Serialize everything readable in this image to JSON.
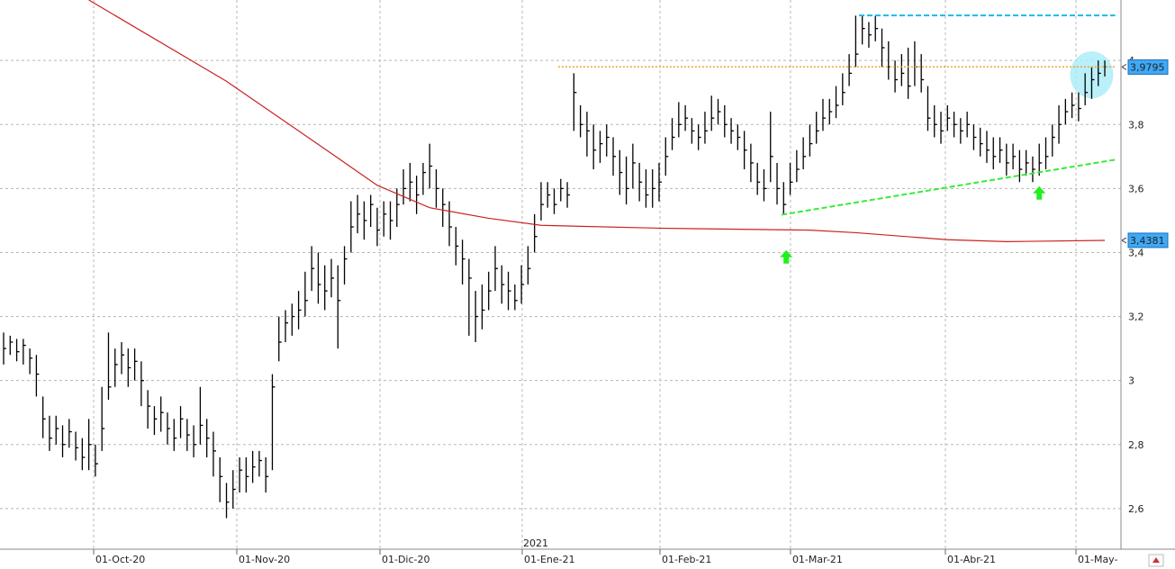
{
  "chart_data": {
    "type": "ohlc",
    "x": [
      0,
      1,
      2,
      3,
      4,
      5,
      6,
      7,
      8,
      9,
      10,
      11,
      12,
      13,
      14,
      15,
      16,
      17,
      18,
      19,
      20,
      21,
      22,
      23,
      24,
      25,
      26,
      27,
      28,
      29,
      30,
      31,
      32,
      33,
      34,
      35,
      36,
      37,
      38,
      39,
      40,
      41,
      42,
      43,
      44,
      45,
      46,
      47,
      48,
      49,
      50,
      51,
      52,
      53,
      54,
      55,
      56,
      57,
      58,
      59,
      60,
      61,
      62,
      63,
      64,
      65,
      66,
      67,
      68,
      69,
      70,
      71,
      72,
      73,
      74,
      75,
      76,
      77,
      78,
      79,
      80,
      81,
      82,
      83,
      84,
      85,
      86,
      87,
      88,
      89,
      90,
      91,
      92,
      93,
      94,
      95,
      96,
      97,
      98,
      99,
      100,
      101,
      102,
      103,
      104,
      105,
      106,
      107,
      108,
      109,
      110,
      111,
      112,
      113,
      114,
      115,
      116,
      117,
      118,
      119,
      120,
      121,
      122,
      123,
      124,
      125,
      126,
      127,
      128,
      129,
      130,
      131,
      132,
      133,
      134,
      135,
      136,
      137,
      138,
      139,
      140,
      141,
      142,
      143,
      144,
      145,
      146,
      147,
      148,
      149,
      150,
      151,
      152,
      153,
      154,
      155,
      156,
      157,
      158,
      159,
      160,
      161,
      162,
      163,
      164,
      165,
      166,
      167,
      168
    ],
    "high": [
      3.15,
      3.14,
      3.13,
      3.13,
      3.1,
      3.08,
      2.95,
      2.89,
      2.89,
      2.86,
      2.88,
      2.84,
      2.82,
      2.88,
      2.8,
      2.98,
      3.15,
      3.1,
      3.12,
      3.1,
      3.1,
      3.06,
      2.97,
      2.92,
      2.95,
      2.9,
      2.88,
      2.92,
      2.88,
      2.86,
      2.98,
      2.88,
      2.84,
      2.76,
      2.68,
      2.72,
      2.76,
      2.76,
      2.78,
      2.78,
      2.76,
      3.02,
      3.2,
      3.22,
      3.24,
      3.28,
      3.34,
      3.42,
      3.4,
      3.36,
      3.38,
      3.36,
      3.42,
      3.56,
      3.58,
      3.56,
      3.58,
      3.54,
      3.56,
      3.56,
      3.6,
      3.66,
      3.68,
      3.64,
      3.68,
      3.74,
      3.66,
      3.6,
      3.56,
      3.48,
      3.44,
      3.38,
      3.28,
      3.3,
      3.34,
      3.42,
      3.36,
      3.34,
      3.3,
      3.36,
      3.42,
      3.52,
      3.62,
      3.62,
      3.6,
      3.63,
      3.62,
      3.96,
      3.86,
      3.84,
      3.8,
      3.78,
      3.8,
      3.76,
      3.72,
      3.7,
      3.74,
      3.68,
      3.66,
      3.66,
      3.68,
      3.76,
      3.82,
      3.87,
      3.86,
      3.82,
      3.8,
      3.84,
      3.89,
      3.88,
      3.86,
      3.82,
      3.8,
      3.78,
      3.74,
      3.68,
      3.66,
      3.84,
      3.68,
      3.62,
      3.68,
      3.72,
      3.76,
      3.8,
      3.84,
      3.88,
      3.88,
      3.92,
      3.96,
      4.02,
      4.14,
      4.14,
      4.12,
      4.14,
      4.1,
      4.06,
      4.0,
      4.02,
      4.04,
      4.06,
      4.02,
      3.92,
      3.86,
      3.84,
      3.86,
      3.84,
      3.82,
      3.84,
      3.8,
      3.79,
      3.78,
      3.76,
      3.76,
      3.74,
      3.74,
      3.72,
      3.72,
      3.7,
      3.74,
      3.76,
      3.8,
      3.86,
      3.88,
      3.9,
      3.9,
      3.96,
      3.98,
      4.0,
      4.0
    ],
    "low": [
      3.05,
      3.08,
      3.06,
      3.05,
      3.02,
      2.95,
      2.82,
      2.78,
      2.8,
      2.76,
      2.79,
      2.75,
      2.72,
      2.72,
      2.7,
      2.78,
      2.94,
      2.98,
      3.02,
      2.98,
      3.0,
      2.92,
      2.85,
      2.83,
      2.84,
      2.8,
      2.78,
      2.82,
      2.78,
      2.76,
      2.8,
      2.76,
      2.7,
      2.62,
      2.57,
      2.6,
      2.65,
      2.65,
      2.68,
      2.7,
      2.65,
      2.72,
      3.06,
      3.12,
      3.14,
      3.16,
      3.2,
      3.28,
      3.24,
      3.22,
      3.26,
      3.1,
      3.3,
      3.4,
      3.46,
      3.44,
      3.48,
      3.42,
      3.45,
      3.44,
      3.48,
      3.55,
      3.56,
      3.52,
      3.58,
      3.6,
      3.54,
      3.48,
      3.42,
      3.36,
      3.3,
      3.14,
      3.12,
      3.16,
      3.22,
      3.28,
      3.24,
      3.22,
      3.22,
      3.24,
      3.3,
      3.4,
      3.5,
      3.54,
      3.52,
      3.56,
      3.54,
      3.78,
      3.76,
      3.7,
      3.66,
      3.68,
      3.7,
      3.64,
      3.58,
      3.55,
      3.6,
      3.56,
      3.54,
      3.54,
      3.56,
      3.64,
      3.72,
      3.76,
      3.78,
      3.74,
      3.72,
      3.74,
      3.78,
      3.8,
      3.76,
      3.74,
      3.72,
      3.66,
      3.62,
      3.58,
      3.56,
      3.62,
      3.55,
      3.52,
      3.58,
      3.62,
      3.66,
      3.7,
      3.74,
      3.78,
      3.8,
      3.82,
      3.86,
      3.92,
      3.98,
      4.05,
      4.04,
      4.06,
      3.98,
      3.94,
      3.9,
      3.92,
      3.88,
      3.92,
      3.9,
      3.78,
      3.76,
      3.74,
      3.78,
      3.76,
      3.74,
      3.76,
      3.72,
      3.7,
      3.68,
      3.66,
      3.68,
      3.64,
      3.66,
      3.62,
      3.64,
      3.62,
      3.64,
      3.66,
      3.7,
      3.74,
      3.8,
      3.82,
      3.81,
      3.86,
      3.88,
      3.92,
      3.95
    ],
    "close": [
      3.1,
      3.12,
      3.09,
      3.11,
      3.07,
      3.02,
      2.88,
      2.82,
      2.85,
      2.8,
      2.84,
      2.79,
      2.76,
      2.8,
      2.74,
      2.85,
      2.98,
      3.05,
      3.08,
      3.04,
      3.06,
      3.0,
      2.92,
      2.88,
      2.9,
      2.85,
      2.82,
      2.88,
      2.83,
      2.8,
      2.86,
      2.82,
      2.78,
      2.7,
      2.62,
      2.66,
      2.72,
      2.7,
      2.73,
      2.75,
      2.7,
      2.98,
      3.12,
      3.18,
      3.2,
      3.22,
      3.25,
      3.35,
      3.3,
      3.28,
      3.32,
      3.25,
      3.38,
      3.48,
      3.52,
      3.5,
      3.55,
      3.47,
      3.52,
      3.5,
      3.55,
      3.6,
      3.62,
      3.58,
      3.65,
      3.67,
      3.6,
      3.55,
      3.48,
      3.42,
      3.38,
      3.32,
      3.2,
      3.22,
      3.28,
      3.35,
      3.3,
      3.28,
      3.25,
      3.3,
      3.35,
      3.45,
      3.55,
      3.58,
      3.55,
      3.6,
      3.58,
      3.9,
      3.8,
      3.78,
      3.72,
      3.74,
      3.76,
      3.7,
      3.65,
      3.6,
      3.68,
      3.62,
      3.58,
      3.6,
      3.62,
      3.7,
      3.76,
      3.8,
      3.82,
      3.78,
      3.76,
      3.78,
      3.82,
      3.84,
      3.8,
      3.78,
      3.76,
      3.72,
      3.68,
      3.62,
      3.6,
      3.7,
      3.6,
      3.55,
      3.62,
      3.66,
      3.7,
      3.74,
      3.78,
      3.82,
      3.84,
      3.86,
      3.9,
      3.96,
      4.02,
      4.1,
      4.08,
      4.1,
      4.04,
      3.98,
      3.94,
      3.96,
      3.92,
      3.98,
      3.94,
      3.82,
      3.8,
      3.78,
      3.82,
      3.8,
      3.78,
      3.8,
      3.76,
      3.74,
      3.72,
      3.7,
      3.72,
      3.68,
      3.7,
      3.66,
      3.68,
      3.66,
      3.68,
      3.7,
      3.76,
      3.8,
      3.84,
      3.86,
      3.85,
      3.9,
      3.94,
      3.96,
      3.98
    ],
    "color": "#000000",
    "ma": {
      "color": "#cc2222",
      "x": [
        13,
        34,
        48,
        57,
        65,
        74,
        82,
        100,
        123,
        130,
        144,
        153,
        168
      ],
      "values": [
        4.189,
        3.935,
        3.738,
        3.61,
        3.54,
        3.507,
        3.485,
        3.476,
        3.47,
        3.462,
        3.44,
        3.434,
        3.438
      ]
    },
    "resistance": {
      "x": [
        84.6,
        169.6
      ],
      "y": 3.98,
      "color": "#f0a030"
    },
    "top": {
      "x": [
        130.5,
        169.6
      ],
      "y": 4.141,
      "color": "#20b8e8"
    },
    "trend": {
      "x": [
        118.7,
        169.6
      ],
      "y": [
        3.518,
        3.69
      ],
      "color": "#33ee33"
    },
    "arrows": {
      "x": [
        119.4,
        158
      ],
      "y": [
        3.385,
        3.585
      ],
      "color": "#22ee22"
    },
    "highlight": {
      "x": 166,
      "y": 3.955,
      "color": "#a8ecf8"
    },
    "price_labels": [
      {
        "value": 3.9795,
        "label": "3,9795"
      },
      {
        "value": 3.4381,
        "label": "3,4381"
      }
    ],
    "price_label_color": "#3fa9f5",
    "xlim": [
      -0.55,
      170.47
    ],
    "ylim": [
      2.473,
      4.189
    ],
    "yticks": [
      {
        "value": 2.6,
        "label": "2,6"
      },
      {
        "value": 2.8,
        "label": "2,8"
      },
      3,
      {
        "value": 3.2,
        "label": "3,2"
      },
      {
        "value": 3.4,
        "label": "3,4"
      },
      {
        "value": 3.6,
        "label": "3,6"
      },
      {
        "value": 3.8,
        "label": "3,8"
      },
      4
    ],
    "xticks": [
      {
        "value": 13.74,
        "label": "01-Oct-20"
      },
      {
        "value": 35.58,
        "label": "01-Nov-20"
      },
      {
        "value": 57.42,
        "label": "01-Dic-20"
      },
      {
        "value": 79.12,
        "label": "01-Ene-21"
      },
      {
        "value": 100.14,
        "label": "01-Feb-21"
      },
      {
        "value": 120.05,
        "label": "01-Mar-21"
      },
      {
        "value": 143.68,
        "label": "01-Abr-21"
      },
      {
        "value": 163.6,
        "label": "01-May-"
      }
    ],
    "year_label": "2021",
    "grid": true
  }
}
